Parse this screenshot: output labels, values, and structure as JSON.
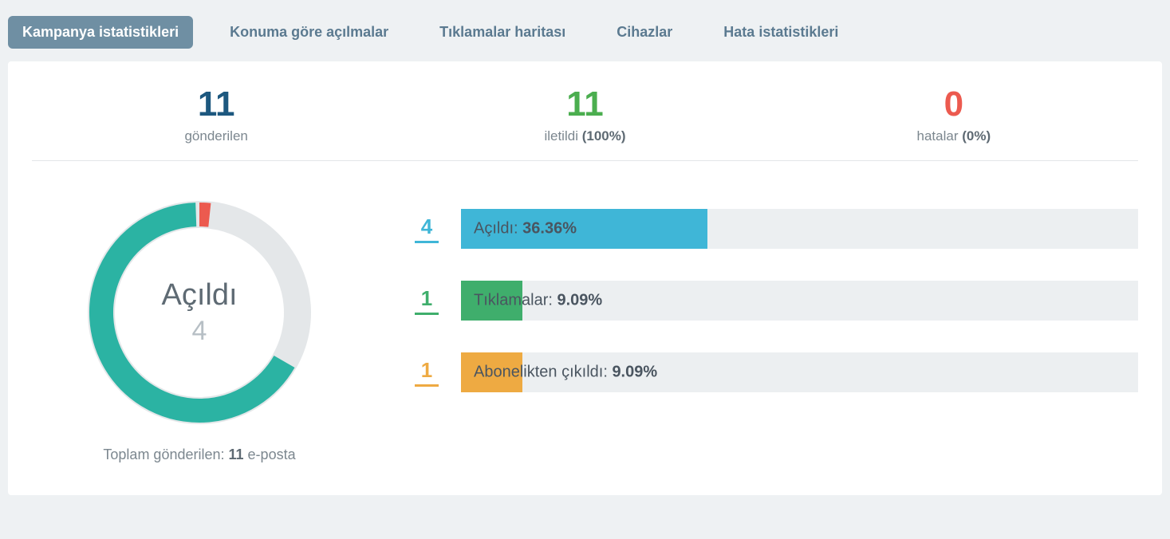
{
  "tabs": [
    {
      "label": "Kampanya istatistikleri",
      "active": true
    },
    {
      "label": "Konuma göre açılmalar",
      "active": false
    },
    {
      "label": "Tıklamalar haritası",
      "active": false
    },
    {
      "label": "Cihazlar",
      "active": false
    },
    {
      "label": "Hata istatistikleri",
      "active": false
    }
  ],
  "top_stats": {
    "sent": {
      "value": "11",
      "label": "gönderilen",
      "color": "#1d587f"
    },
    "delivered": {
      "value": "11",
      "label_prefix": "iletildi ",
      "label_pct": "(100%)",
      "color": "#4bae4f"
    },
    "errors": {
      "value": "0",
      "label_prefix": "hatalar ",
      "label_pct": "(0%)",
      "color": "#ec5a4f"
    }
  },
  "donut": {
    "center_title": "Açıldı",
    "center_count": "4",
    "footer_prefix": "Toplam gönderilen: ",
    "footer_strong": "11",
    "footer_suffix": " e-posta",
    "size": 300,
    "ring_outer_r": 140,
    "ring_thickness": 34,
    "track_color": "#e4e7e9",
    "segments": [
      {
        "color": "#2bb3a3",
        "start_deg": 120,
        "end_deg": 358
      },
      {
        "color": "#ec5a4f",
        "start_deg": 0,
        "end_deg": 6
      }
    ]
  },
  "bars": {
    "track_color": "#eceff1",
    "items": [
      {
        "count": "4",
        "label": "Açıldı:",
        "pct_text": "36.36%",
        "fill_pct": 36.36,
        "color": "#3fb6d7"
      },
      {
        "count": "1",
        "label": "Tıklamalar:",
        "pct_text": "9.09%",
        "fill_pct": 9.09,
        "color": "#3fae6c"
      },
      {
        "count": "1",
        "label": "Abonelikten çıkıldı:",
        "pct_text": "9.09%",
        "fill_pct": 9.09,
        "color": "#eeaa42"
      }
    ]
  }
}
